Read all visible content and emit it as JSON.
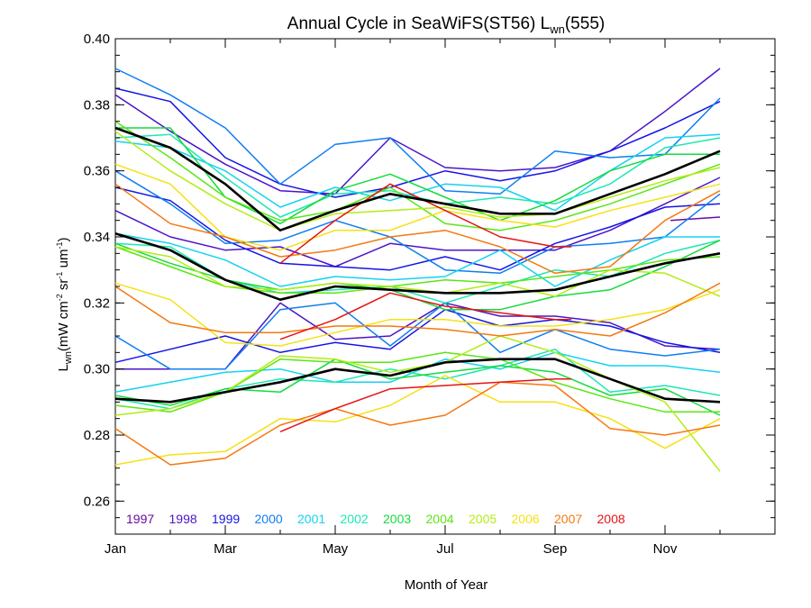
{
  "chart_data": {
    "type": "line",
    "title": "Annual Cycle in SeaWiFS(ST56) L",
    "title_sub": "wn",
    "title_tail": "(555)",
    "xlabel": "Month of Year",
    "ylabel_main": "L",
    "ylabel_sub": "wn",
    "ylabel_units": "(mW cm",
    "ylabel_units_pieces": [
      "(mW cm",
      "-2",
      " sr",
      "-1",
      " um",
      "-1",
      ")"
    ],
    "xlim": [
      1,
      13
    ],
    "ylim": [
      0.25,
      0.4
    ],
    "x_ticks": [
      {
        "v": 1,
        "label": "Jan"
      },
      {
        "v": 3,
        "label": "Mar"
      },
      {
        "v": 5,
        "label": "May"
      },
      {
        "v": 7,
        "label": "Jul"
      },
      {
        "v": 9,
        "label": "Sep"
      },
      {
        "v": 11,
        "label": "Nov"
      }
    ],
    "y_ticks": [
      {
        "v": 0.26,
        "label": "0.26"
      },
      {
        "v": 0.28,
        "label": "0.28"
      },
      {
        "v": 0.3,
        "label": "0.30"
      },
      {
        "v": 0.32,
        "label": "0.32"
      },
      {
        "v": 0.34,
        "label": "0.34"
      },
      {
        "v": 0.36,
        "label": "0.36"
      },
      {
        "v": 0.38,
        "label": "0.38"
      },
      {
        "v": 0.4,
        "label": "0.40"
      }
    ],
    "legend": [
      {
        "label": "1997",
        "color": "#6a0aa0"
      },
      {
        "label": "1998",
        "color": "#4b14c8"
      },
      {
        "label": "1999",
        "color": "#1414e6"
      },
      {
        "label": "2000",
        "color": "#0f7ef0"
      },
      {
        "label": "2001",
        "color": "#14d2f0"
      },
      {
        "label": "2002",
        "color": "#1ee6b4"
      },
      {
        "label": "2003",
        "color": "#14dc3c"
      },
      {
        "label": "2004",
        "color": "#5ae614"
      },
      {
        "label": "2005",
        "color": "#b4ec14"
      },
      {
        "label": "2006",
        "color": "#f5e114"
      },
      {
        "label": "2007",
        "color": "#f5780f"
      },
      {
        "label": "2008",
        "color": "#e61414"
      }
    ],
    "mean_color": "#000000",
    "series": [
      {
        "color": "#000000",
        "mean": true,
        "x": [
          1,
          2,
          3,
          4,
          5,
          6,
          7,
          8,
          9,
          10,
          11,
          12
        ],
        "values": [
          0.373,
          0.367,
          0.356,
          0.342,
          0.348,
          0.353,
          0.35,
          0.347,
          0.347,
          0.353,
          0.359,
          0.366
        ]
      },
      {
        "color": "#000000",
        "mean": true,
        "x": [
          1,
          2,
          3,
          4,
          5,
          6,
          7,
          8,
          9,
          10,
          11,
          12
        ],
        "values": [
          0.341,
          0.336,
          0.327,
          0.321,
          0.325,
          0.324,
          0.323,
          0.323,
          0.324,
          0.328,
          0.332,
          0.335
        ]
      },
      {
        "color": "#000000",
        "mean": true,
        "x": [
          1,
          2,
          3,
          4,
          5,
          6,
          7,
          8,
          9,
          10,
          11,
          12
        ],
        "values": [
          0.291,
          0.29,
          0.293,
          0.296,
          0.3,
          0.298,
          0.302,
          0.303,
          0.303,
          0.297,
          0.291,
          0.29
        ]
      },
      {
        "color": "#6a0aa0",
        "x": [
          11.1,
          12
        ],
        "values": [
          0.345,
          0.346
        ]
      },
      {
        "color": "#4b14c8",
        "x": [
          1,
          2,
          3,
          4,
          5,
          6,
          7,
          8,
          9,
          10,
          11,
          12
        ],
        "values": [
          0.383,
          0.372,
          0.362,
          0.354,
          0.353,
          0.37,
          0.361,
          0.36,
          0.361,
          0.366,
          0.378,
          0.391
        ]
      },
      {
        "color": "#4b14c8",
        "x": [
          1,
          2,
          3,
          4,
          5,
          6,
          7,
          8,
          9,
          10,
          11,
          12
        ],
        "values": [
          0.348,
          0.34,
          0.336,
          0.337,
          0.331,
          0.338,
          0.336,
          0.336,
          0.336,
          0.342,
          0.35,
          0.358
        ]
      },
      {
        "color": "#4b14c8",
        "x": [
          1,
          2,
          3,
          4,
          5,
          6,
          7,
          8,
          9,
          10,
          11,
          12
        ],
        "values": [
          0.3,
          0.3,
          0.3,
          0.32,
          0.309,
          0.31,
          0.32,
          0.316,
          0.316,
          0.314,
          0.307,
          0.306
        ]
      },
      {
        "color": "#1414e6",
        "x": [
          1,
          2,
          3,
          4,
          5,
          6,
          7,
          8,
          9,
          10,
          11,
          12
        ],
        "values": [
          0.385,
          0.381,
          0.364,
          0.356,
          0.352,
          0.355,
          0.36,
          0.357,
          0.36,
          0.366,
          0.373,
          0.381
        ]
      },
      {
        "color": "#1414e6",
        "x": [
          1,
          2,
          3,
          4,
          5,
          6,
          7,
          8,
          9,
          10,
          11,
          12
        ],
        "values": [
          0.355,
          0.351,
          0.339,
          0.332,
          0.331,
          0.33,
          0.334,
          0.33,
          0.338,
          0.343,
          0.349,
          0.35
        ]
      },
      {
        "color": "#1414e6",
        "x": [
          1,
          2,
          3,
          4,
          5,
          6,
          7,
          8,
          9,
          10,
          11,
          12
        ],
        "values": [
          0.302,
          0.306,
          0.31,
          0.305,
          0.308,
          0.306,
          0.318,
          0.313,
          0.315,
          0.313,
          0.308,
          0.305
        ]
      },
      {
        "color": "#0f7ef0",
        "x": [
          1,
          2,
          3,
          4,
          5,
          6,
          7,
          8,
          9,
          10,
          11,
          12
        ],
        "values": [
          0.391,
          0.383,
          0.373,
          0.356,
          0.368,
          0.37,
          0.354,
          0.353,
          0.366,
          0.364,
          0.365,
          0.382
        ]
      },
      {
        "color": "#0f7ef0",
        "x": [
          1,
          2,
          3,
          4,
          5,
          6,
          7,
          8,
          9,
          10,
          11,
          12
        ],
        "values": [
          0.36,
          0.35,
          0.338,
          0.339,
          0.345,
          0.34,
          0.33,
          0.329,
          0.337,
          0.338,
          0.34,
          0.353
        ]
      },
      {
        "color": "#0f7ef0",
        "x": [
          1,
          2,
          3,
          4,
          5,
          6,
          7,
          8,
          9,
          10,
          11,
          12
        ],
        "values": [
          0.31,
          0.3,
          0.3,
          0.318,
          0.32,
          0.307,
          0.32,
          0.305,
          0.312,
          0.306,
          0.304,
          0.306
        ]
      },
      {
        "color": "#14d2f0",
        "x": [
          1,
          2,
          3,
          4,
          5,
          6,
          7,
          8,
          9,
          10,
          11,
          12
        ],
        "values": [
          0.369,
          0.367,
          0.36,
          0.349,
          0.355,
          0.351,
          0.356,
          0.355,
          0.348,
          0.36,
          0.37,
          0.371
        ]
      },
      {
        "color": "#14d2f0",
        "x": [
          1,
          2,
          3,
          4,
          5,
          6,
          7,
          8,
          9,
          10,
          11,
          12
        ],
        "values": [
          0.341,
          0.338,
          0.333,
          0.325,
          0.328,
          0.327,
          0.328,
          0.336,
          0.325,
          0.333,
          0.34,
          0.34
        ]
      },
      {
        "color": "#14d2f0",
        "x": [
          1,
          2,
          3,
          4,
          5,
          6,
          7,
          8,
          9,
          10,
          11,
          12
        ],
        "values": [
          0.293,
          0.296,
          0.299,
          0.3,
          0.296,
          0.296,
          0.303,
          0.3,
          0.305,
          0.301,
          0.301,
          0.299
        ]
      },
      {
        "color": "#1ee6b4",
        "x": [
          1,
          2,
          3,
          4,
          5,
          6,
          7,
          8,
          9,
          10,
          11,
          12
        ],
        "values": [
          0.37,
          0.371,
          0.358,
          0.346,
          0.353,
          0.354,
          0.35,
          0.352,
          0.35,
          0.356,
          0.367,
          0.37
        ]
      },
      {
        "color": "#1ee6b4",
        "x": [
          1,
          2,
          3,
          4,
          5,
          6,
          7,
          8,
          9,
          10,
          11,
          12
        ],
        "values": [
          0.338,
          0.337,
          0.327,
          0.323,
          0.324,
          0.325,
          0.32,
          0.325,
          0.33,
          0.328,
          0.335,
          0.339
        ]
      },
      {
        "color": "#1ee6b4",
        "x": [
          1,
          2,
          3,
          4,
          5,
          6,
          7,
          8,
          9,
          10,
          11,
          12
        ],
        "values": [
          0.291,
          0.288,
          0.294,
          0.297,
          0.296,
          0.3,
          0.297,
          0.301,
          0.306,
          0.293,
          0.295,
          0.292
        ]
      },
      {
        "color": "#14dc3c",
        "x": [
          1,
          2,
          3,
          4,
          5,
          6,
          7,
          8,
          9,
          10,
          11,
          12
        ],
        "values": [
          0.373,
          0.373,
          0.352,
          0.344,
          0.354,
          0.359,
          0.352,
          0.345,
          0.351,
          0.36,
          0.365,
          0.365
        ]
      },
      {
        "color": "#14dc3c",
        "x": [
          1,
          2,
          3,
          4,
          5,
          6,
          7,
          8,
          9,
          10,
          11,
          12
        ],
        "values": [
          0.338,
          0.332,
          0.327,
          0.324,
          0.326,
          0.324,
          0.318,
          0.318,
          0.322,
          0.324,
          0.331,
          0.339
        ]
      },
      {
        "color": "#14dc3c",
        "x": [
          1,
          2,
          3,
          4,
          5,
          6,
          7,
          8,
          9,
          10,
          11,
          12
        ],
        "values": [
          0.292,
          0.289,
          0.294,
          0.293,
          0.303,
          0.297,
          0.299,
          0.301,
          0.299,
          0.292,
          0.294,
          0.286
        ]
      },
      {
        "color": "#5ae614",
        "x": [
          1,
          2,
          3,
          4,
          5,
          6,
          7,
          8,
          9,
          10,
          11,
          12
        ],
        "values": [
          0.375,
          0.364,
          0.352,
          0.345,
          0.348,
          0.355,
          0.344,
          0.342,
          0.345,
          0.35,
          0.356,
          0.362
        ]
      },
      {
        "color": "#5ae614",
        "x": [
          1,
          2,
          3,
          4,
          5,
          6,
          7,
          8,
          9,
          10,
          11,
          12
        ],
        "values": [
          0.337,
          0.331,
          0.325,
          0.323,
          0.323,
          0.325,
          0.327,
          0.326,
          0.328,
          0.33,
          0.333,
          0.334
        ]
      },
      {
        "color": "#5ae614",
        "x": [
          1,
          2,
          3,
          4,
          5,
          6,
          7,
          8,
          9,
          10,
          11,
          12
        ],
        "values": [
          0.289,
          0.287,
          0.293,
          0.303,
          0.302,
          0.302,
          0.305,
          0.303,
          0.296,
          0.291,
          0.287,
          0.287
        ]
      },
      {
        "color": "#b4ec14",
        "x": [
          1,
          2,
          3,
          4,
          5,
          6,
          7,
          8,
          9,
          10,
          11,
          12
        ],
        "values": [
          0.372,
          0.36,
          0.35,
          0.342,
          0.347,
          0.348,
          0.349,
          0.346,
          0.347,
          0.352,
          0.357,
          0.361
        ]
      },
      {
        "color": "#b4ec14",
        "x": [
          1,
          2,
          3,
          4,
          5,
          6,
          7,
          8,
          9,
          10,
          11,
          12
        ],
        "values": [
          0.337,
          0.334,
          0.325,
          0.324,
          0.326,
          0.325,
          0.323,
          0.326,
          0.322,
          0.33,
          0.329,
          0.322
        ]
      },
      {
        "color": "#b4ec14",
        "x": [
          1,
          2,
          3,
          4,
          5,
          6,
          7,
          8,
          9,
          10,
          11,
          12
        ],
        "values": [
          0.286,
          0.288,
          0.293,
          0.304,
          0.303,
          0.299,
          0.302,
          0.31,
          0.305,
          0.297,
          0.29,
          0.269
        ]
      },
      {
        "color": "#f5e114",
        "x": [
          1,
          2,
          3,
          4,
          5,
          6,
          7,
          8,
          9,
          10,
          11,
          12
        ],
        "values": [
          0.362,
          0.356,
          0.34,
          0.336,
          0.342,
          0.342,
          0.348,
          0.345,
          0.343,
          0.348,
          0.352,
          0.356
        ]
      },
      {
        "color": "#f5e114",
        "x": [
          1,
          2,
          3,
          4,
          5,
          6,
          7,
          8,
          9,
          10,
          11,
          12
        ],
        "values": [
          0.326,
          0.321,
          0.308,
          0.307,
          0.311,
          0.315,
          0.315,
          0.313,
          0.313,
          0.315,
          0.318,
          0.324
        ]
      },
      {
        "color": "#f5e114",
        "x": [
          1,
          2,
          3,
          4,
          5,
          6,
          7,
          8,
          9,
          10,
          11,
          12
        ],
        "values": [
          0.271,
          0.274,
          0.275,
          0.285,
          0.284,
          0.289,
          0.298,
          0.29,
          0.29,
          0.285,
          0.276,
          0.285
        ]
      },
      {
        "color": "#f5780f",
        "x": [
          1,
          2,
          3,
          4,
          5,
          6,
          7,
          8,
          9,
          10,
          11,
          12
        ],
        "values": [
          0.356,
          0.344,
          0.34,
          0.334,
          0.336,
          0.34,
          0.342,
          0.337,
          0.329,
          0.331,
          0.345,
          0.354
        ]
      },
      {
        "color": "#f5780f",
        "x": [
          1,
          2,
          3,
          4,
          5,
          6,
          7,
          8,
          9,
          10,
          11,
          12
        ],
        "values": [
          0.325,
          0.314,
          0.311,
          0.311,
          0.313,
          0.313,
          0.312,
          0.31,
          0.312,
          0.31,
          0.317,
          0.326
        ]
      },
      {
        "color": "#f5780f",
        "x": [
          1,
          2,
          3,
          4,
          5,
          6,
          7,
          8,
          9,
          10,
          11,
          12
        ],
        "values": [
          0.282,
          0.271,
          0.273,
          0.283,
          0.288,
          0.283,
          0.286,
          0.296,
          0.295,
          0.282,
          0.28,
          0.283
        ]
      },
      {
        "color": "#e61414",
        "x": [
          4,
          5,
          6,
          7,
          8,
          9,
          9.3
        ],
        "values": [
          0.332,
          0.345,
          0.356,
          0.348,
          0.34,
          0.337,
          0.337
        ]
      },
      {
        "color": "#e61414",
        "x": [
          4,
          5,
          6,
          7,
          8,
          9,
          9.3
        ],
        "values": [
          0.309,
          0.315,
          0.323,
          0.319,
          0.317,
          0.315,
          0.315
        ]
      },
      {
        "color": "#e61414",
        "x": [
          4,
          5,
          6,
          7,
          8,
          9,
          9.3
        ],
        "values": [
          0.281,
          0.288,
          0.294,
          0.295,
          0.296,
          0.297,
          0.297
        ]
      }
    ]
  }
}
